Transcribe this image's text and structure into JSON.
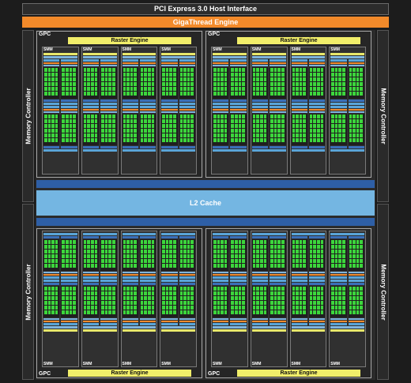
{
  "header": {
    "pcie_label": "PCI Express 3.0 Host Interface",
    "gigathread_label": "GigaThread Engine"
  },
  "memory_controller_label": "Memory Controller",
  "gpc_label": "GPC",
  "raster_label": "Raster Engine",
  "smm_label": "SMM",
  "l2_label": "L2 Cache",
  "colors": {
    "cores": "#3cd63c",
    "l2": "#74b6e2",
    "raster": "#f1ee6a",
    "gigathread": "#f28a2a"
  }
}
